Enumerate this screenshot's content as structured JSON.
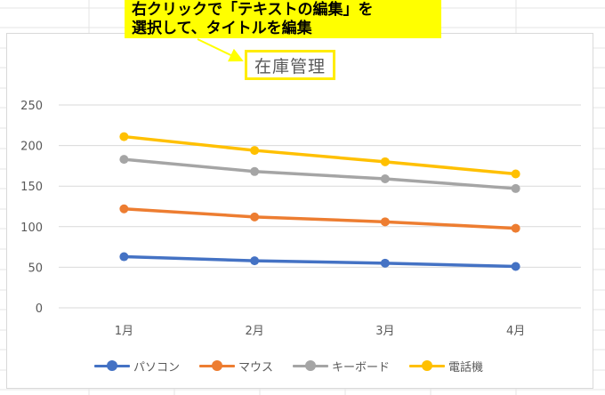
{
  "callout": {
    "line1": "右クリックで「テキストの編集」を",
    "line2": "選択して、タイトルを編集"
  },
  "colors": {
    "callout_bg": "#ffff00",
    "title_border": "#ffec00",
    "gridline": "#d9d9d9",
    "axis_text": "#595959"
  },
  "chart_data": {
    "type": "line",
    "title": "在庫管理",
    "categories": [
      "1月",
      "2月",
      "3月",
      "4月"
    ],
    "ylim": [
      0,
      250
    ],
    "yticks": [
      0,
      50,
      100,
      150,
      200,
      250
    ],
    "grid": true,
    "legend_position": "bottom",
    "series": [
      {
        "name": "パソコン",
        "color": "#4472c4",
        "values": [
          63,
          58,
          55,
          51
        ]
      },
      {
        "name": "マウス",
        "color": "#ed7d31",
        "values": [
          122,
          112,
          106,
          98
        ]
      },
      {
        "name": "キーボード",
        "color": "#a5a5a5",
        "values": [
          183,
          168,
          159,
          147
        ]
      },
      {
        "name": "電話機",
        "color": "#ffc000",
        "values": [
          211,
          194,
          180,
          165
        ]
      }
    ]
  }
}
